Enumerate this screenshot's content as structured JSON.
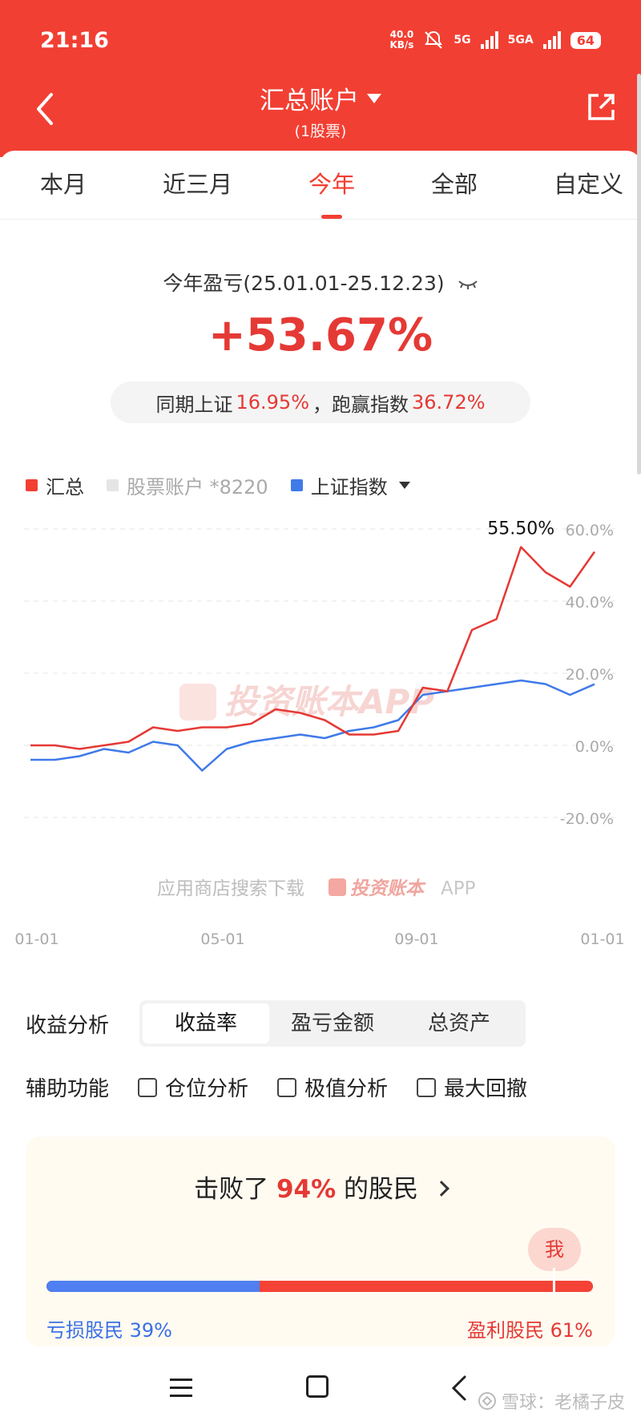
{
  "status": {
    "time": "21:16",
    "net_speed_value": "40.0",
    "net_speed_unit": "KB/s",
    "net1": "5G",
    "net2": "5GA",
    "battery": "64"
  },
  "header": {
    "title": "汇总账户",
    "subtitle": "(1股票)"
  },
  "tabs": [
    {
      "label": "本月",
      "active": false
    },
    {
      "label": "近三月",
      "active": false
    },
    {
      "label": "今年",
      "active": true
    },
    {
      "label": "全部",
      "active": false
    },
    {
      "label": "自定义",
      "active": false
    }
  ],
  "summary": {
    "label": "今年盈亏(25.01.01-25.12.23)",
    "value": "+53.67%",
    "compare_prefix": "同期上证",
    "index_return": "16.95%",
    "compare_mid": "，跑赢指数",
    "beat_index": "36.72%"
  },
  "legend": [
    {
      "label": "汇总",
      "color": "#f23f33"
    },
    {
      "label": "股票账户 *8220",
      "color": "#e5e5e5"
    },
    {
      "label": "上证指数",
      "color": "#3f7ae8"
    }
  ],
  "chart_watermark": {
    "main": "投资账本APP",
    "bottom_prefix": "应用商店搜索下载",
    "bottom_brand": "投资账本",
    "bottom_suffix": "APP"
  },
  "chart_data": {
    "type": "line",
    "x": [
      "01-01",
      "01-15",
      "02-01",
      "02-15",
      "03-01",
      "03-15",
      "04-01",
      "04-15",
      "05-01",
      "05-15",
      "06-01",
      "06-15",
      "07-01",
      "07-15",
      "08-01",
      "08-15",
      "09-01",
      "09-15",
      "10-01",
      "10-15",
      "11-01",
      "11-15",
      "12-01",
      "12-23"
    ],
    "xticks": [
      "01-01",
      "05-01",
      "09-01",
      "01-01"
    ],
    "yticks": [
      "60.0%",
      "40.0%",
      "20.0%",
      "0.0%",
      "-20.0%"
    ],
    "ylim": [
      -20,
      60
    ],
    "max_label": "55.50%",
    "series": [
      {
        "name": "汇总",
        "color": "#e53935",
        "values": [
          0,
          0,
          -1,
          0,
          1,
          5,
          4,
          5,
          5,
          6,
          10,
          9,
          7,
          3,
          3,
          4,
          16,
          15,
          32,
          35,
          55,
          48,
          44,
          53.67
        ]
      },
      {
        "name": "上证指数",
        "color": "#3f7ae8",
        "values": [
          -4,
          -4,
          -3,
          -1,
          -2,
          1,
          0,
          -7,
          -1,
          1,
          2,
          3,
          2,
          4,
          5,
          7,
          14,
          15,
          16,
          17,
          18,
          17,
          14,
          16.95
        ]
      }
    ]
  },
  "analysis": {
    "label": "收益分析",
    "options": [
      {
        "label": "收益率",
        "active": true
      },
      {
        "label": "盈亏金额",
        "active": false
      },
      {
        "label": "总资产",
        "active": false
      }
    ]
  },
  "aux": {
    "label": "辅助功能",
    "options": [
      {
        "label": "仓位分析"
      },
      {
        "label": "极值分析"
      },
      {
        "label": "最大回撤"
      }
    ]
  },
  "beat": {
    "prefix": "击败了",
    "percent": "94%",
    "suffix": "的股民",
    "me": "我",
    "loss_label": "亏损股民 39%",
    "gain_label": "盈利股民 61%",
    "loss_fraction": 0.39
  },
  "footer": {
    "watermark": "雪球：老橘子皮"
  }
}
